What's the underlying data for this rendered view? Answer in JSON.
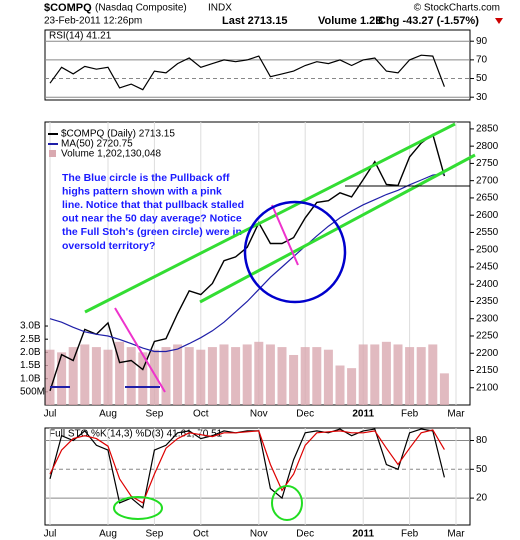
{
  "header": {
    "symbol": "$COMPQ",
    "name": "(Nasdaq Composite)",
    "exchange": "INDX",
    "copyright": "© StockCharts.com",
    "date": "23-Feb-2011 12:26pm",
    "last": "Last 2713.15",
    "volume": "Volume 1.2B",
    "change": "Chg -43.27 (-1.57%)"
  },
  "chart_data": [
    {
      "type": "line",
      "title": "RSI(14) 41.21",
      "ylim": [
        27,
        102
      ],
      "yticks": [
        30,
        50,
        70,
        90
      ],
      "series": [
        {
          "color": "#000000",
          "values": [
            45,
            62,
            55,
            63,
            60,
            62,
            40,
            44,
            38,
            58,
            56,
            66,
            72,
            62,
            66,
            70,
            68,
            70,
            74,
            52,
            55,
            58,
            64,
            68,
            66,
            70,
            64,
            70,
            72,
            58,
            56,
            70,
            75,
            74,
            41.21,
            null
          ]
        }
      ]
    },
    {
      "type": "line",
      "categories": [
        "Jul",
        null,
        null,
        null,
        null,
        "Aug",
        null,
        null,
        null,
        "Sep",
        null,
        null,
        null,
        "Oct",
        null,
        null,
        null,
        null,
        "Nov",
        null,
        null,
        null,
        "Dec",
        null,
        null,
        null,
        null,
        "2011",
        null,
        null,
        null,
        "Feb",
        null,
        null,
        null,
        "Mar"
      ],
      "ylim": [
        2050,
        2870
      ],
      "yticks": [
        2100,
        2150,
        2200,
        2250,
        2300,
        2350,
        2400,
        2450,
        2500,
        2550,
        2600,
        2650,
        2700,
        2750,
        2800,
        2850
      ],
      "y2lim": [
        0,
        10750000000
      ],
      "y2ticks": [
        {
          "value": 500000000,
          "label": "500M"
        },
        {
          "value": 1000000000,
          "label": "1.0B"
        },
        {
          "value": 1500000000,
          "label": "1.5B"
        },
        {
          "value": 2000000000,
          "label": "2.0B"
        },
        {
          "value": 2500000000,
          "label": "2.5B"
        },
        {
          "value": 3000000000,
          "label": "3.0B"
        }
      ],
      "series": [
        {
          "name": "$COMPQ (Daily) 2713.15",
          "color": "#000000",
          "values": [
            2091,
            2196,
            2179,
            2269,
            2255,
            2288,
            2173,
            2179,
            2153,
            2234,
            2242,
            2315,
            2381,
            2370,
            2402,
            2468,
            2479,
            2507,
            2578,
            2518,
            2518,
            2535,
            2592,
            2637,
            2642,
            2665,
            2653,
            2703,
            2755,
            2689,
            2686,
            2769,
            2809,
            2834,
            2713.15,
            null
          ]
        },
        {
          "name": "MA(50) 2720.75",
          "color": "#1f1fa8",
          "values": [
            2300,
            2290,
            2275,
            2262,
            2255,
            2250,
            2240,
            2228,
            2215,
            2205,
            2205,
            2212,
            2228,
            2245,
            2265,
            2290,
            2320,
            2350,
            2385,
            2420,
            2450,
            2480,
            2510,
            2540,
            2568,
            2592,
            2612,
            2630,
            2645,
            2660,
            2672,
            2688,
            2702,
            2716,
            2720.75,
            null
          ]
        },
        {
          "name": "Volume 1,202,130,048",
          "axis": "y2",
          "color": "#d9a9b0",
          "values": [
            2100000000,
            2000000000,
            2200000000,
            2300000000,
            2200000000,
            2100000000,
            2400000000,
            2200000000,
            2000000000,
            2100000000,
            2200000000,
            2300000000,
            2200000000,
            2100000000,
            2200000000,
            2300000000,
            2200000000,
            2300000000,
            2400000000,
            2300000000,
            2200000000,
            1900000000,
            2200000000,
            2200000000,
            2100000000,
            1500000000,
            1400000000,
            2300000000,
            2300000000,
            2400000000,
            2300000000,
            2200000000,
            2200000000,
            2300000000,
            1202130048,
            null
          ]
        }
      ],
      "annotations": [
        "The Blue circle is the Pullback off",
        "highs pattern shown with a pink",
        "line. Notice that that pullback stalled",
        "out near the 50 day average? Notice",
        "the Full Stoh's (green circle) were in",
        "oversold territory?"
      ]
    },
    {
      "type": "line",
      "title": "Full STO %K(14,3) %D(3) 41.61, 70.51",
      "categories": [
        "Jul",
        null,
        null,
        null,
        null,
        "Aug",
        null,
        null,
        null,
        "Sep",
        null,
        null,
        null,
        "Oct",
        null,
        null,
        null,
        null,
        "Nov",
        null,
        null,
        null,
        "Dec",
        null,
        null,
        null,
        null,
        "2011",
        null,
        null,
        null,
        "Feb",
        null,
        null,
        null,
        "Mar"
      ],
      "ylim": [
        -8,
        93
      ],
      "yticks": [
        20,
        50,
        80
      ],
      "series": [
        {
          "color": "#000000",
          "values": [
            40,
            85,
            80,
            90,
            75,
            70,
            15,
            20,
            10,
            70,
            75,
            88,
            90,
            82,
            85,
            90,
            88,
            90,
            90,
            30,
            20,
            60,
            88,
            90,
            88,
            92,
            85,
            90,
            92,
            55,
            50,
            88,
            92,
            90,
            41.61,
            null
          ]
        },
        {
          "color": "#dd0000",
          "values": [
            45,
            70,
            82,
            85,
            82,
            74,
            40,
            22,
            15,
            45,
            72,
            82,
            88,
            86,
            84,
            88,
            88,
            89,
            90,
            55,
            28,
            45,
            75,
            88,
            89,
            90,
            88,
            88,
            90,
            72,
            55,
            72,
            88,
            91,
            70.51,
            null
          ]
        }
      ]
    }
  ]
}
